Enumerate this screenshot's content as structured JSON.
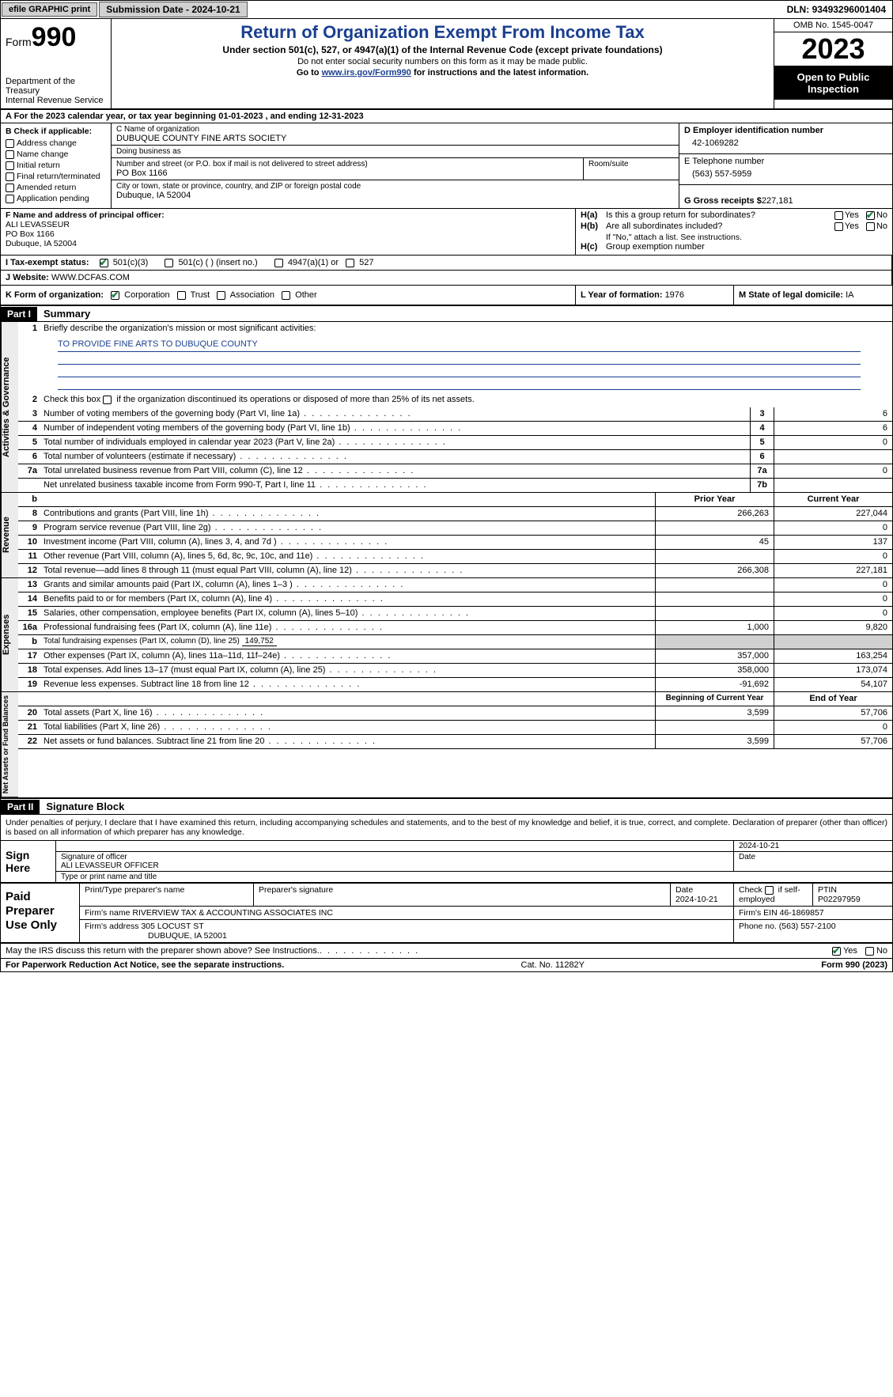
{
  "topbar": {
    "efile": "efile GRAPHIC print",
    "subdate_label": "Submission Date - ",
    "subdate": "2024-10-21",
    "dln_label": "DLN: ",
    "dln": "93493296001404"
  },
  "header": {
    "form_word": "Form",
    "form_num": "990",
    "dept": "Department of the Treasury",
    "irs": "Internal Revenue Service",
    "title": "Return of Organization Exempt From Income Tax",
    "subtitle": "Under section 501(c), 527, or 4947(a)(1) of the Internal Revenue Code (except private foundations)",
    "ssn_note": "Do not enter social security numbers on this form as it may be made public.",
    "goto_pre": "Go to ",
    "goto_link": "www.irs.gov/Form990",
    "goto_post": " for instructions and the latest information.",
    "omb": "OMB No. 1545-0047",
    "year": "2023",
    "open": "Open to Public Inspection"
  },
  "row_a": {
    "pre": "A For the 2023 calendar year, or tax year beginning ",
    "begin": "01-01-2023",
    "mid": " , and ending ",
    "end": "12-31-2023"
  },
  "col_b": {
    "heading": "B Check if applicable:",
    "items": [
      "Address change",
      "Name change",
      "Initial return",
      "Final return/terminated",
      "Amended return",
      "Application pending"
    ]
  },
  "col_c": {
    "name_label": "C Name of organization",
    "name": "DUBUQUE COUNTY FINE ARTS SOCIETY",
    "dba_label": "Doing business as",
    "dba": "",
    "street_label": "Number and street (or P.O. box if mail is not delivered to street address)",
    "street": "PO Box 1166",
    "room_label": "Room/suite",
    "city_label": "City or town, state or province, country, and ZIP or foreign postal code",
    "city": "Dubuque, IA  52004"
  },
  "col_d": {
    "ein_label": "D Employer identification number",
    "ein": "42-1069282",
    "phone_label": "E Telephone number",
    "phone": "(563) 557-5959",
    "gross_label": "G Gross receipts $ ",
    "gross": "227,181"
  },
  "row_f": {
    "label": "F  Name and address of principal officer:",
    "name": "ALI LEVASSEUR",
    "street": "PO Box 1166",
    "city": "Dubuque, IA  52004",
    "ha_label": "H(a)",
    "ha_q": "Is this a group return for subordinates?",
    "hb_label": "H(b)",
    "hb_q": "Are all subordinates included?",
    "hb_note": "If \"No,\" attach a list. See instructions.",
    "hc_label": "H(c)",
    "hc_q": "Group exemption number ",
    "yes": "Yes",
    "no": "No"
  },
  "row_i": {
    "label": "I   Tax-exempt status:",
    "o1": "501(c)(3)",
    "o2": "501(c) (   ) (insert no.)",
    "o3": "4947(a)(1) or",
    "o4": "527"
  },
  "row_j": {
    "label": "J   Website: ",
    "val": "WWW.DCFAS.COM"
  },
  "row_k": {
    "label": "K Form of organization:",
    "o1": "Corporation",
    "o2": "Trust",
    "o3": "Association",
    "o4": "Other",
    "l_label": "L Year of formation: ",
    "l_val": "1976",
    "m_label": "M State of legal domicile: ",
    "m_val": "IA"
  },
  "part1": {
    "hdr": "Part I",
    "title": "Summary",
    "q1_num": "1",
    "q1": "Briefly describe the organization's mission or most significant activities:",
    "mission": "TO PROVIDE FINE ARTS TO DUBUQUE COUNTY",
    "q2_num": "2",
    "q2": "Check this box      if the organization discontinued its operations or disposed of more than 25% of its net assets.",
    "lines_gov": [
      {
        "n": "3",
        "d": "Number of voting members of the governing body (Part VI, line 1a)",
        "ln": "3",
        "v2": "6"
      },
      {
        "n": "4",
        "d": "Number of independent voting members of the governing body (Part VI, line 1b)",
        "ln": "4",
        "v2": "6"
      },
      {
        "n": "5",
        "d": "Total number of individuals employed in calendar year 2023 (Part V, line 2a)",
        "ln": "5",
        "v2": "0"
      },
      {
        "n": "6",
        "d": "Total number of volunteers (estimate if necessary)",
        "ln": "6",
        "v2": ""
      },
      {
        "n": "7a",
        "d": "Total unrelated business revenue from Part VIII, column (C), line 12",
        "ln": "7a",
        "v2": "0"
      },
      {
        "n": "",
        "d": "Net unrelated business taxable income from Form 990-T, Part I, line 11",
        "ln": "7b",
        "v2": ""
      }
    ],
    "col_b": "b",
    "col_prior": "Prior Year",
    "col_current": "Current Year",
    "lines_rev": [
      {
        "n": "8",
        "d": "Contributions and grants (Part VIII, line 1h)",
        "v1": "266,263",
        "v2": "227,044"
      },
      {
        "n": "9",
        "d": "Program service revenue (Part VIII, line 2g)",
        "v1": "",
        "v2": "0"
      },
      {
        "n": "10",
        "d": "Investment income (Part VIII, column (A), lines 3, 4, and 7d )",
        "v1": "45",
        "v2": "137"
      },
      {
        "n": "11",
        "d": "Other revenue (Part VIII, column (A), lines 5, 6d, 8c, 9c, 10c, and 11e)",
        "v1": "",
        "v2": "0"
      },
      {
        "n": "12",
        "d": "Total revenue—add lines 8 through 11 (must equal Part VIII, column (A), line 12)",
        "v1": "266,308",
        "v2": "227,181"
      }
    ],
    "lines_exp": [
      {
        "n": "13",
        "d": "Grants and similar amounts paid (Part IX, column (A), lines 1–3 )",
        "v1": "",
        "v2": "0"
      },
      {
        "n": "14",
        "d": "Benefits paid to or for members (Part IX, column (A), line 4)",
        "v1": "",
        "v2": "0"
      },
      {
        "n": "15",
        "d": "Salaries, other compensation, employee benefits (Part IX, column (A), lines 5–10)",
        "v1": "",
        "v2": "0"
      },
      {
        "n": "16a",
        "d": "Professional fundraising fees (Part IX, column (A), line 11e)",
        "v1": "1,000",
        "v2": "9,820"
      }
    ],
    "line_16b_n": "b",
    "line_16b_d": "Total fundraising expenses (Part IX, column (D), line 25) ",
    "line_16b_v": "149,752",
    "lines_exp2": [
      {
        "n": "17",
        "d": "Other expenses (Part IX, column (A), lines 11a–11d, 11f–24e)",
        "v1": "357,000",
        "v2": "163,254"
      },
      {
        "n": "18",
        "d": "Total expenses. Add lines 13–17 (must equal Part IX, column (A), line 25)",
        "v1": "358,000",
        "v2": "173,074"
      },
      {
        "n": "19",
        "d": "Revenue less expenses. Subtract line 18 from line 12",
        "v1": "-91,692",
        "v2": "54,107"
      }
    ],
    "col_begin": "Beginning of Current Year",
    "col_end": "End of Year",
    "lines_net": [
      {
        "n": "20",
        "d": "Total assets (Part X, line 16)",
        "v1": "3,599",
        "v2": "57,706"
      },
      {
        "n": "21",
        "d": "Total liabilities (Part X, line 26)",
        "v1": "",
        "v2": "0"
      },
      {
        "n": "22",
        "d": "Net assets or fund balances. Subtract line 21 from line 20",
        "v1": "3,599",
        "v2": "57,706"
      }
    ],
    "tab_gov": "Activities & Governance",
    "tab_rev": "Revenue",
    "tab_exp": "Expenses",
    "tab_net": "Net Assets or Fund Balances"
  },
  "part2": {
    "hdr": "Part II",
    "title": "Signature Block",
    "decl": "Under penalties of perjury, I declare that I have examined this return, including accompanying schedules and statements, and to the best of my knowledge and belief, it is true, correct, and complete. Declaration of preparer (other than officer) is based on all information of which preparer has any knowledge."
  },
  "sign": {
    "label": "Sign Here",
    "sig_label": "Signature of officer",
    "date_label": "Date",
    "date": "2024-10-21",
    "officer": "ALI LEVASSEUR  OFFICER",
    "type_label": "Type or print name and title"
  },
  "prep": {
    "label": "Paid Preparer Use Only",
    "c1": "Print/Type preparer's name",
    "c2": "Preparer's signature",
    "c3_label": "Date",
    "c3": "2024-10-21",
    "c4_pre": "Check",
    "c4_post": "if self-employed",
    "c5_label": "PTIN",
    "c5": "P02297959",
    "firm_label": "Firm's name   ",
    "firm": "RIVERVIEW TAX & ACCOUNTING ASSOCIATES INC",
    "ein_label": "Firm's EIN  ",
    "ein": "46-1869857",
    "addr_label": "Firm's address ",
    "addr1": "305 LOCUST ST",
    "addr2": "DUBUQUE, IA  52001",
    "phone_label": "Phone no. ",
    "phone": "(563) 557-2100"
  },
  "footer": {
    "q": "May the IRS discuss this return with the preparer shown above? See Instructions.",
    "yes": "Yes",
    "no": "No",
    "pra": "For Paperwork Reduction Act Notice, see the separate instructions.",
    "cat": "Cat. No. 11282Y",
    "form": "Form 990 (2023)"
  }
}
